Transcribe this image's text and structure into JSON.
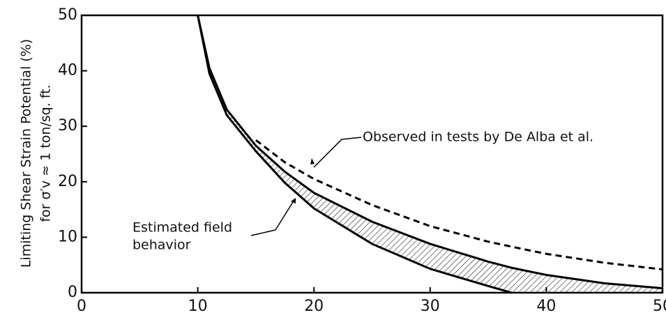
{
  "chart_data": {
    "type": "line",
    "ylabel": [
      "Limiting Shear Strain Potential (%)",
      "for σ′v ≈ 1 ton/sq. ft."
    ],
    "x": [
      10,
      11,
      12.5,
      15,
      17.5,
      20,
      25,
      30,
      35,
      37,
      40,
      45,
      50
    ],
    "series": [
      {
        "color": "#000000",
        "dash": false,
        "values": [
          50,
          40.5,
          33,
          26.5,
          21.8,
          18,
          12.8,
          8.8,
          5.6,
          4.5,
          3.2,
          1.7,
          0.8
        ]
      },
      {
        "color": "#000000",
        "dash": false,
        "values": [
          50,
          39.5,
          32,
          25.5,
          19.8,
          15.2,
          8.8,
          4.3,
          1.2,
          0,
          null,
          null,
          null
        ]
      },
      {
        "color": "#000000",
        "dash": true,
        "values": [
          null,
          null,
          null,
          27.5,
          23.5,
          20.5,
          15.8,
          12,
          9.2,
          8.3,
          7,
          5.4,
          4.2
        ]
      }
    ],
    "annotations": [
      "Observed in tests by De Alba et al.",
      "Estimated field",
      "behavior"
    ],
    "xlim": [
      0,
      50
    ],
    "ylim": [
      0,
      50
    ],
    "xticks": [
      0,
      10,
      20,
      30,
      40,
      50
    ],
    "yticks": [
      0,
      10,
      20,
      30,
      40,
      50
    ],
    "grid": false
  }
}
